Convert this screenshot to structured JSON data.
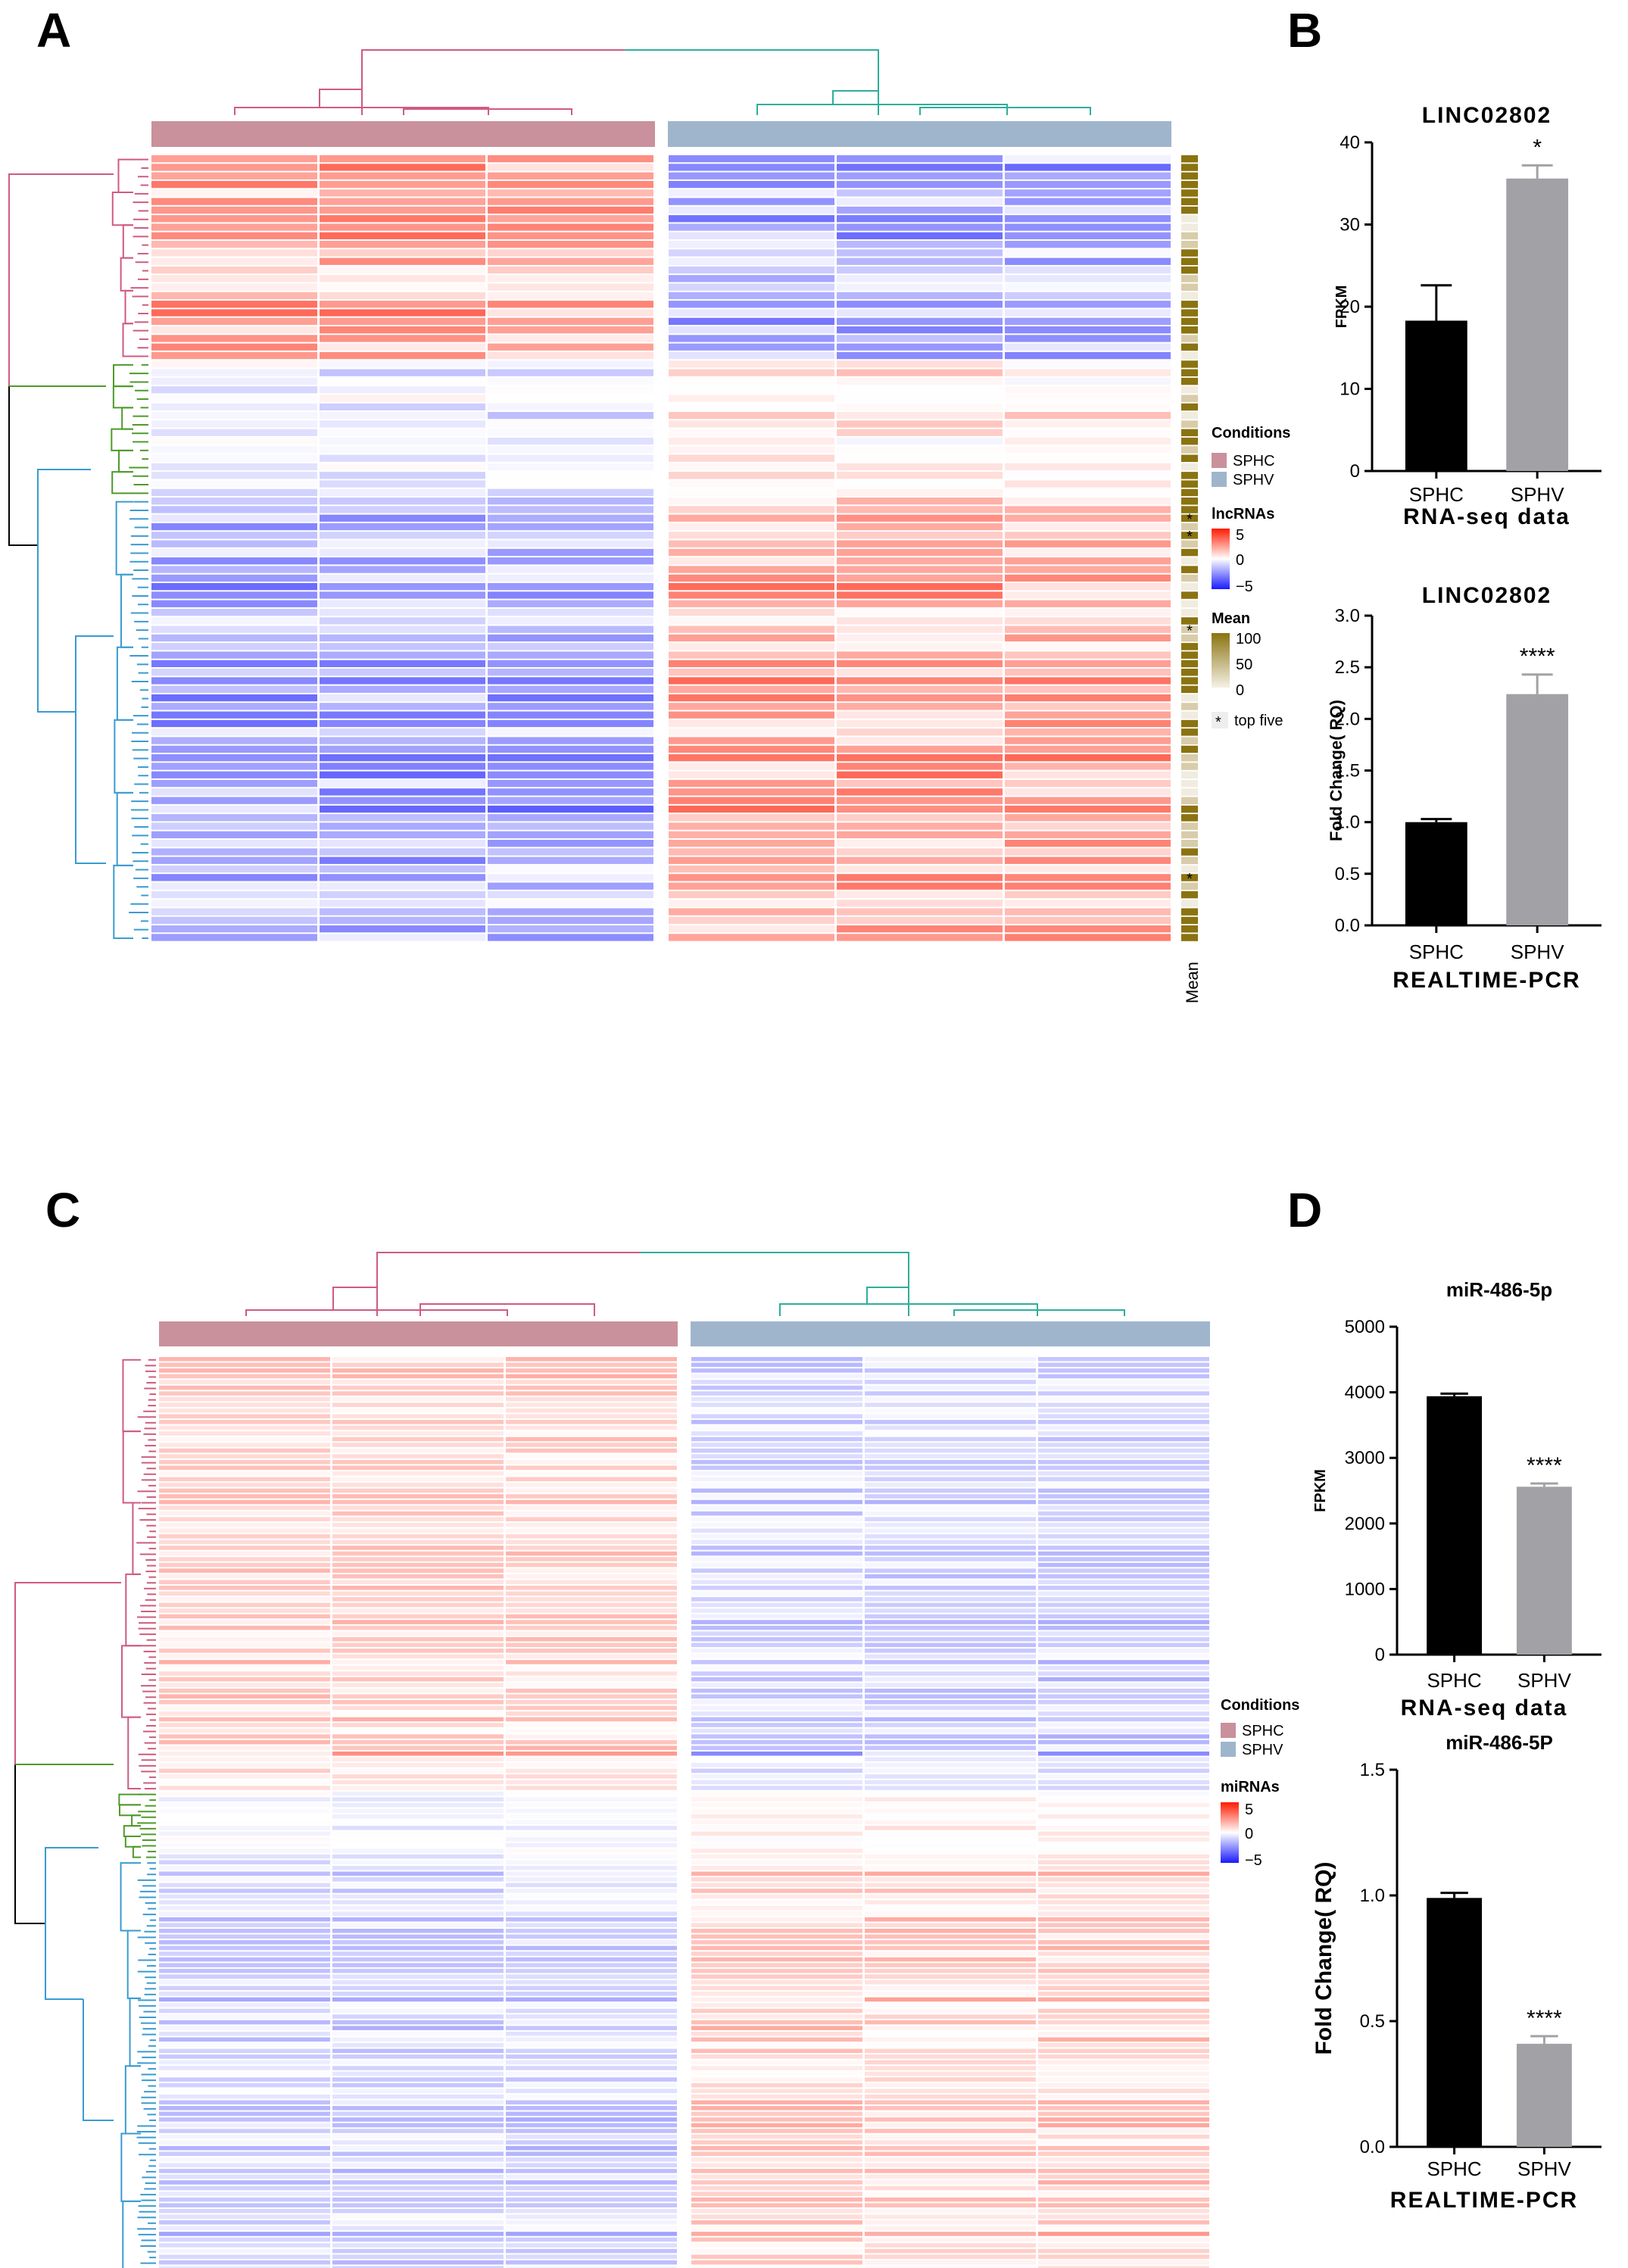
{
  "panels": {
    "A": {
      "label": "A",
      "legend": {
        "conditions_title": "Conditions",
        "conditions": [
          {
            "name": "SPHC",
            "color": "#c9919b"
          },
          {
            "name": "SPHV",
            "color": "#9fb5cc"
          }
        ],
        "scale_title": "lncRNAs",
        "scale_ticks": [
          "5",
          "0",
          "−5"
        ],
        "mean_title": "Mean",
        "mean_ticks": [
          "100",
          "50",
          "0"
        ],
        "top_five_symbol": "*",
        "top_five_label": "top five",
        "mean_axis_label": "Mean"
      }
    },
    "B": {
      "label": "B"
    },
    "C": {
      "label": "C",
      "legend": {
        "conditions_title": "Conditions",
        "conditions": [
          {
            "name": "SPHC",
            "color": "#c9919b"
          },
          {
            "name": "SPHV",
            "color": "#9fb5cc"
          }
        ],
        "scale_title": "miRNAs",
        "scale_ticks": [
          "5",
          "0",
          "−5"
        ]
      }
    },
    "D": {
      "label": "D"
    }
  },
  "colors": {
    "sphc_bar": "#000000",
    "sphv_bar": "#a2a2a6",
    "condition_sphc": "#c9919b",
    "condition_sphv": "#9fb5cc",
    "dendro_pink": "#cf5b7f",
    "dendro_teal": "#2fae9a",
    "dendro_green": "#4e9a2a",
    "dendro_blue": "#3a9bd0",
    "heat_high": "#ff1a00",
    "heat_low": "#1a1aff",
    "mean_high": "#8a7310"
  },
  "chart_data": [
    {
      "id": "A",
      "type": "heatmap",
      "title": "",
      "feature_type": "lncRNAs",
      "columns": [
        "SPHC",
        "SPHC",
        "SPHC",
        "SPHV",
        "SPHV",
        "SPHV"
      ],
      "conditions": [
        "SPHC",
        "SPHV"
      ],
      "value_range": [
        -5,
        5
      ],
      "mean_range": [
        0,
        100
      ],
      "row_clusters": [
        "pink",
        "green",
        "blue"
      ],
      "top_five_marked": 5
    },
    {
      "id": "B1",
      "type": "bar",
      "title": "LINC02802",
      "categories": [
        "SPHC",
        "SPHV"
      ],
      "values": [
        18.3,
        35.6
      ],
      "errors": [
        4.3,
        1.6
      ],
      "significance": [
        "",
        "*"
      ],
      "ylabel": "FPKM",
      "xlabel": "RNA-seq data",
      "ylim": [
        0,
        40
      ],
      "yticks": [
        "0",
        "10",
        "20",
        "30",
        "40"
      ]
    },
    {
      "id": "B2",
      "type": "bar",
      "title": "LINC02802",
      "categories": [
        "SPHC",
        "SPHV"
      ],
      "values": [
        1.0,
        2.24
      ],
      "errors": [
        0.03,
        0.19
      ],
      "significance": [
        "",
        "****"
      ],
      "ylabel": "Fold Change( RQ)",
      "xlabel": "REALTIME-PCR",
      "ylim": [
        0,
        3.0
      ],
      "yticks": [
        "0.0",
        "0.5",
        "1.0",
        "1.5",
        "2.0",
        "2.5",
        "3.0"
      ]
    },
    {
      "id": "C",
      "type": "heatmap",
      "title": "",
      "feature_type": "miRNAs",
      "columns": [
        "SPHC",
        "SPHC",
        "SPHC",
        "SPHV",
        "SPHV",
        "SPHV"
      ],
      "conditions": [
        "SPHC",
        "SPHV"
      ],
      "value_range": [
        -5,
        5
      ],
      "row_clusters": [
        "pink",
        "green",
        "blue"
      ]
    },
    {
      "id": "D1",
      "type": "bar",
      "title": "miR-486-5p",
      "categories": [
        "SPHC",
        "SPHV"
      ],
      "values": [
        3940,
        2560
      ],
      "errors": [
        40,
        50
      ],
      "significance": [
        "",
        "****"
      ],
      "ylabel": "FPKM",
      "xlabel": "RNA-seq data",
      "ylim": [
        0,
        5000
      ],
      "yticks": [
        "0",
        "1000",
        "2000",
        "3000",
        "4000",
        "5000"
      ]
    },
    {
      "id": "D2",
      "type": "bar",
      "title": "miR-486-5P",
      "categories": [
        "SPHC",
        "SPHV"
      ],
      "values": [
        0.99,
        0.41
      ],
      "errors": [
        0.02,
        0.03
      ],
      "significance": [
        "",
        "****"
      ],
      "ylabel": "Fold Change( RQ)",
      "xlabel": "REALTIME-PCR",
      "ylim": [
        0,
        1.5
      ],
      "yticks": [
        "0.0",
        "0.5",
        "1.0",
        "1.5"
      ]
    }
  ]
}
